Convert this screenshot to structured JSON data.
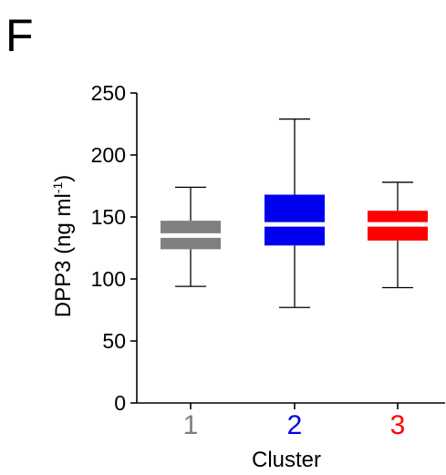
{
  "panel_label": "F",
  "chart_data": {
    "type": "box",
    "xlabel": "Cluster",
    "ylabel": "DPP3 (ng ml",
    "ylabel_sup": "-1",
    "ylabel_close": ")",
    "ylim": [
      0,
      250
    ],
    "yticks": [
      0,
      50,
      100,
      150,
      200,
      250
    ],
    "ytick_labels": [
      "0",
      "50",
      "100",
      "150",
      "200",
      "250"
    ],
    "categories": [
      "1",
      "2",
      "3"
    ],
    "colors": [
      "#808080",
      "#0000ee",
      "#ff0000"
    ],
    "boxes": [
      {
        "category": "1",
        "min": 94,
        "q1": 124,
        "median": 135,
        "q3": 147,
        "max": 174
      },
      {
        "category": "2",
        "min": 77,
        "q1": 127,
        "median": 144,
        "q3": 168,
        "max": 229
      },
      {
        "category": "3",
        "min": 93,
        "q1": 131,
        "median": 144,
        "q3": 155,
        "max": 178
      }
    ]
  }
}
